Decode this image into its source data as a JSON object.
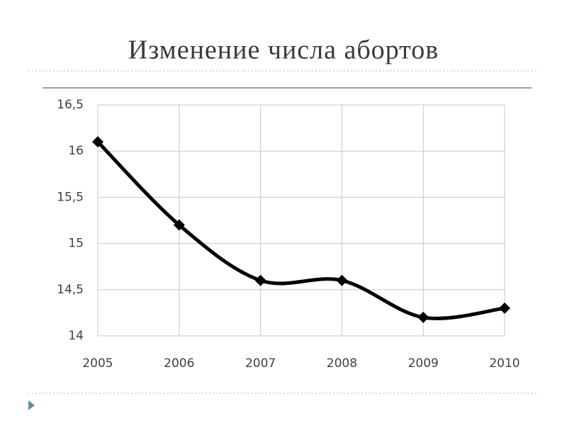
{
  "chart_data": {
    "type": "line",
    "title": "Изменение числа абортов",
    "categories": [
      "2005",
      "2006",
      "2007",
      "2008",
      "2009",
      "2010"
    ],
    "series": [
      {
        "name": null,
        "color": "#000000",
        "values": [
          16.1,
          15.2,
          14.6,
          14.6,
          14.2,
          14.3
        ]
      }
    ],
    "ylim": [
      14,
      16.5
    ],
    "yticks": [
      14,
      {
        "value": 14.5,
        "label": "14,5"
      },
      15,
      {
        "value": 15.5,
        "label": "15,5"
      },
      16,
      {
        "value": 16.5,
        "label": "16,5"
      }
    ],
    "grid": true
  }
}
